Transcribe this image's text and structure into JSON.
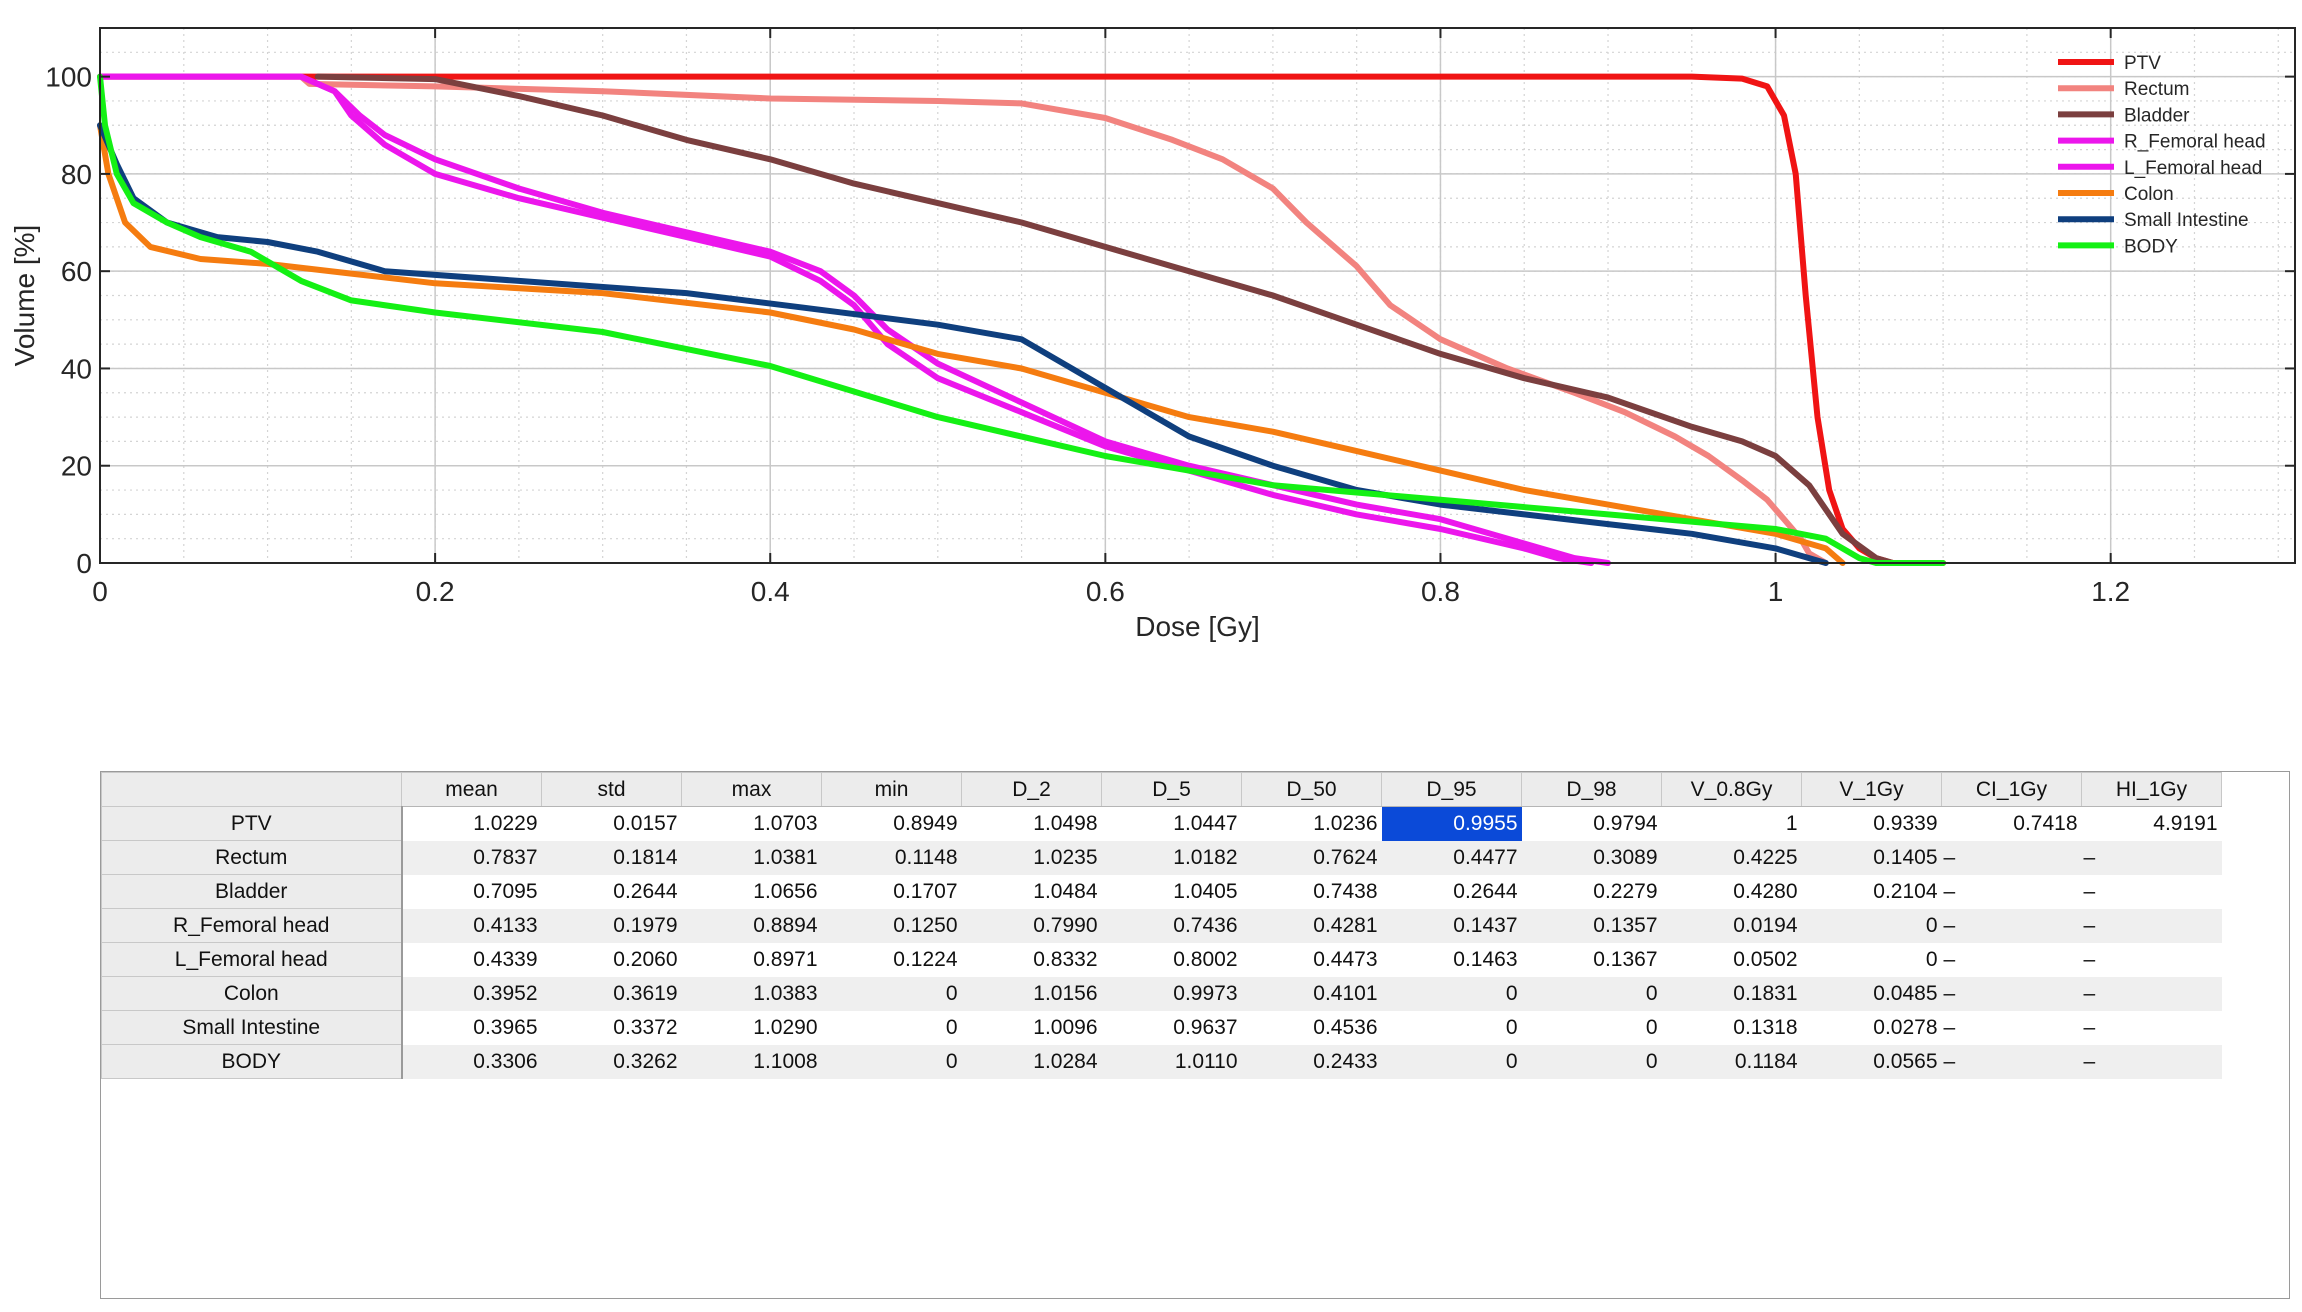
{
  "chart_data": {
    "type": "line",
    "xlabel": "Dose [Gy]",
    "ylabel": "Volume [%]",
    "xlim": [
      0,
      1.31
    ],
    "ylim": [
      0,
      110
    ],
    "x_ticks": [
      0,
      0.2,
      0.4,
      0.6,
      0.8,
      1,
      1.2
    ],
    "x_tick_labels": [
      "0",
      "0.2",
      "0.4",
      "0.6",
      "0.8",
      "1",
      "1.2"
    ],
    "y_ticks": [
      0,
      20,
      40,
      60,
      80,
      100
    ],
    "y_tick_labels": [
      "0",
      "20",
      "40",
      "60",
      "80",
      "100"
    ],
    "grid": true,
    "minor_grid": true,
    "legend_position": "top-right",
    "series": [
      {
        "name": "PTV",
        "color": "#f01414",
        "points": [
          [
            0,
            100
          ],
          [
            0.95,
            100
          ],
          [
            0.98,
            99.6
          ],
          [
            0.995,
            98
          ],
          [
            1.005,
            92
          ],
          [
            1.012,
            80
          ],
          [
            1.018,
            55
          ],
          [
            1.025,
            30
          ],
          [
            1.032,
            15
          ],
          [
            1.04,
            7
          ],
          [
            1.05,
            3
          ],
          [
            1.06,
            1
          ],
          [
            1.07,
            0
          ],
          [
            1.1,
            0
          ]
        ]
      },
      {
        "name": "Rectum",
        "color": "#f2837f",
        "points": [
          [
            0.12,
            100
          ],
          [
            0.125,
            98.5
          ],
          [
            0.2,
            98
          ],
          [
            0.3,
            97
          ],
          [
            0.4,
            95.5
          ],
          [
            0.5,
            95
          ],
          [
            0.55,
            94.5
          ],
          [
            0.6,
            91.5
          ],
          [
            0.64,
            87
          ],
          [
            0.67,
            83
          ],
          [
            0.7,
            77
          ],
          [
            0.72,
            70
          ],
          [
            0.75,
            61
          ],
          [
            0.77,
            53
          ],
          [
            0.8,
            46
          ],
          [
            0.84,
            40
          ],
          [
            0.88,
            35
          ],
          [
            0.91,
            31
          ],
          [
            0.94,
            26
          ],
          [
            0.96,
            22
          ],
          [
            0.98,
            17
          ],
          [
            0.995,
            13
          ],
          [
            1.005,
            9
          ],
          [
            1.015,
            5
          ],
          [
            1.02,
            2
          ],
          [
            1.03,
            0
          ]
        ]
      },
      {
        "name": "Bladder",
        "color": "#7b3f3f",
        "points": [
          [
            0.13,
            100
          ],
          [
            0.2,
            99.5
          ],
          [
            0.25,
            96
          ],
          [
            0.3,
            92
          ],
          [
            0.35,
            87
          ],
          [
            0.4,
            83
          ],
          [
            0.45,
            78
          ],
          [
            0.5,
            74
          ],
          [
            0.55,
            70
          ],
          [
            0.6,
            65
          ],
          [
            0.65,
            60
          ],
          [
            0.7,
            55
          ],
          [
            0.75,
            49
          ],
          [
            0.8,
            43
          ],
          [
            0.85,
            38
          ],
          [
            0.9,
            34
          ],
          [
            0.95,
            28
          ],
          [
            0.98,
            25
          ],
          [
            1.0,
            22
          ],
          [
            1.02,
            16
          ],
          [
            1.04,
            6
          ],
          [
            1.06,
            1
          ],
          [
            1.07,
            0
          ]
        ]
      },
      {
        "name": "R_Femoral head",
        "color": "#ec16ec",
        "points": [
          [
            0,
            100
          ],
          [
            0.12,
            100
          ],
          [
            0.14,
            97
          ],
          [
            0.15,
            92
          ],
          [
            0.17,
            86
          ],
          [
            0.2,
            80
          ],
          [
            0.25,
            75
          ],
          [
            0.3,
            71
          ],
          [
            0.35,
            67
          ],
          [
            0.4,
            63
          ],
          [
            0.43,
            58
          ],
          [
            0.45,
            53
          ],
          [
            0.47,
            45
          ],
          [
            0.5,
            38
          ],
          [
            0.55,
            31
          ],
          [
            0.6,
            24
          ],
          [
            0.65,
            19
          ],
          [
            0.7,
            14
          ],
          [
            0.75,
            10
          ],
          [
            0.8,
            7
          ],
          [
            0.85,
            3
          ],
          [
            0.87,
            1
          ],
          [
            0.89,
            0
          ]
        ]
      },
      {
        "name": "L_Femoral head",
        "color": "#ec16ec",
        "points": [
          [
            0,
            100
          ],
          [
            0.12,
            100
          ],
          [
            0.14,
            97
          ],
          [
            0.155,
            92
          ],
          [
            0.17,
            88
          ],
          [
            0.2,
            83
          ],
          [
            0.25,
            77
          ],
          [
            0.3,
            72
          ],
          [
            0.35,
            68
          ],
          [
            0.4,
            64
          ],
          [
            0.43,
            60
          ],
          [
            0.45,
            55
          ],
          [
            0.47,
            48
          ],
          [
            0.5,
            41
          ],
          [
            0.55,
            33
          ],
          [
            0.6,
            25
          ],
          [
            0.65,
            20
          ],
          [
            0.7,
            16
          ],
          [
            0.75,
            12
          ],
          [
            0.8,
            9
          ],
          [
            0.85,
            4
          ],
          [
            0.88,
            1
          ],
          [
            0.9,
            0
          ]
        ]
      },
      {
        "name": "Colon",
        "color": "#f57c10",
        "points": [
          [
            0,
            90
          ],
          [
            0.005,
            80
          ],
          [
            0.015,
            70
          ],
          [
            0.03,
            65
          ],
          [
            0.06,
            62.5
          ],
          [
            0.1,
            61.5
          ],
          [
            0.15,
            59.5
          ],
          [
            0.2,
            57.5
          ],
          [
            0.3,
            55.5
          ],
          [
            0.4,
            51.5
          ],
          [
            0.45,
            48
          ],
          [
            0.5,
            43
          ],
          [
            0.55,
            40
          ],
          [
            0.6,
            35
          ],
          [
            0.65,
            30
          ],
          [
            0.7,
            27
          ],
          [
            0.75,
            23
          ],
          [
            0.8,
            19
          ],
          [
            0.85,
            15
          ],
          [
            0.9,
            12
          ],
          [
            0.95,
            9
          ],
          [
            1.0,
            6
          ],
          [
            1.03,
            3
          ],
          [
            1.04,
            0
          ]
        ]
      },
      {
        "name": "Small Intestine",
        "color": "#0f3f7e",
        "points": [
          [
            0,
            90
          ],
          [
            0.01,
            82
          ],
          [
            0.02,
            75
          ],
          [
            0.04,
            70
          ],
          [
            0.07,
            67
          ],
          [
            0.1,
            66
          ],
          [
            0.13,
            64
          ],
          [
            0.17,
            60
          ],
          [
            0.25,
            58
          ],
          [
            0.35,
            55.5
          ],
          [
            0.42,
            52.5
          ],
          [
            0.5,
            49
          ],
          [
            0.55,
            46
          ],
          [
            0.6,
            36
          ],
          [
            0.65,
            26
          ],
          [
            0.7,
            20
          ],
          [
            0.75,
            15
          ],
          [
            0.8,
            12
          ],
          [
            0.85,
            10
          ],
          [
            0.9,
            8
          ],
          [
            0.95,
            6
          ],
          [
            1.0,
            3
          ],
          [
            1.02,
            1
          ],
          [
            1.03,
            0
          ]
        ]
      },
      {
        "name": "BODY",
        "color": "#14f014",
        "points": [
          [
            0,
            100
          ],
          [
            0.003,
            90
          ],
          [
            0.01,
            80
          ],
          [
            0.02,
            74
          ],
          [
            0.04,
            70
          ],
          [
            0.06,
            67
          ],
          [
            0.09,
            64
          ],
          [
            0.12,
            58
          ],
          [
            0.15,
            54
          ],
          [
            0.2,
            51.5
          ],
          [
            0.3,
            47.5
          ],
          [
            0.4,
            40.5
          ],
          [
            0.5,
            30
          ],
          [
            0.6,
            22
          ],
          [
            0.7,
            16
          ],
          [
            0.8,
            13
          ],
          [
            0.9,
            10
          ],
          [
            1.0,
            7
          ],
          [
            1.03,
            5
          ],
          [
            1.05,
            1
          ],
          [
            1.06,
            0
          ],
          [
            1.1,
            0
          ]
        ]
      }
    ]
  },
  "table": {
    "columns": [
      "mean",
      "std",
      "max",
      "min",
      "D_2",
      "D_5",
      "D_50",
      "D_95",
      "D_98",
      "V_0.8Gy",
      "V_1Gy",
      "CI_1Gy",
      "HI_1Gy"
    ],
    "rows": [
      {
        "label": "PTV",
        "cells": [
          "1.0229",
          "0.0157",
          "1.0703",
          "0.8949",
          "1.0498",
          "1.0447",
          "1.0236",
          "0.9955",
          "0.9794",
          "1",
          "0.9339",
          "0.7418",
          "4.9191"
        ]
      },
      {
        "label": "Rectum",
        "cells": [
          "0.7837",
          "0.1814",
          "1.0381",
          "0.1148",
          "1.0235",
          "1.0182",
          "0.7624",
          "0.4477",
          "0.3089",
          "0.4225",
          "0.1405",
          "–",
          "–"
        ]
      },
      {
        "label": "Bladder",
        "cells": [
          "0.7095",
          "0.2644",
          "1.0656",
          "0.1707",
          "1.0484",
          "1.0405",
          "0.7438",
          "0.2644",
          "0.2279",
          "0.4280",
          "0.2104",
          "–",
          "–"
        ]
      },
      {
        "label": "R_Femoral head",
        "cells": [
          "0.4133",
          "0.1979",
          "0.8894",
          "0.1250",
          "0.7990",
          "0.7436",
          "0.4281",
          "0.1437",
          "0.1357",
          "0.0194",
          "0",
          "–",
          "–"
        ]
      },
      {
        "label": "L_Femoral head",
        "cells": [
          "0.4339",
          "0.2060",
          "0.8971",
          "0.1224",
          "0.8332",
          "0.8002",
          "0.4473",
          "0.1463",
          "0.1367",
          "0.0502",
          "0",
          "–",
          "–"
        ]
      },
      {
        "label": "Colon",
        "cells": [
          "0.3952",
          "0.3619",
          "1.0383",
          "0",
          "1.0156",
          "0.9973",
          "0.4101",
          "0",
          "0",
          "0.1831",
          "0.0485",
          "–",
          "–"
        ]
      },
      {
        "label": "Small Intestine",
        "cells": [
          "0.3965",
          "0.3372",
          "1.0290",
          "0",
          "1.0096",
          "0.9637",
          "0.4536",
          "0",
          "0",
          "0.1318",
          "0.0278",
          "–",
          "–"
        ]
      },
      {
        "label": "BODY",
        "cells": [
          "0.3306",
          "0.3262",
          "1.1008",
          "0",
          "1.0284",
          "1.0110",
          "0.2433",
          "0",
          "0",
          "0.1184",
          "0.0565",
          "–",
          "–"
        ]
      }
    ],
    "selected_cell": {
      "row": "PTV",
      "column": "D_95"
    }
  }
}
